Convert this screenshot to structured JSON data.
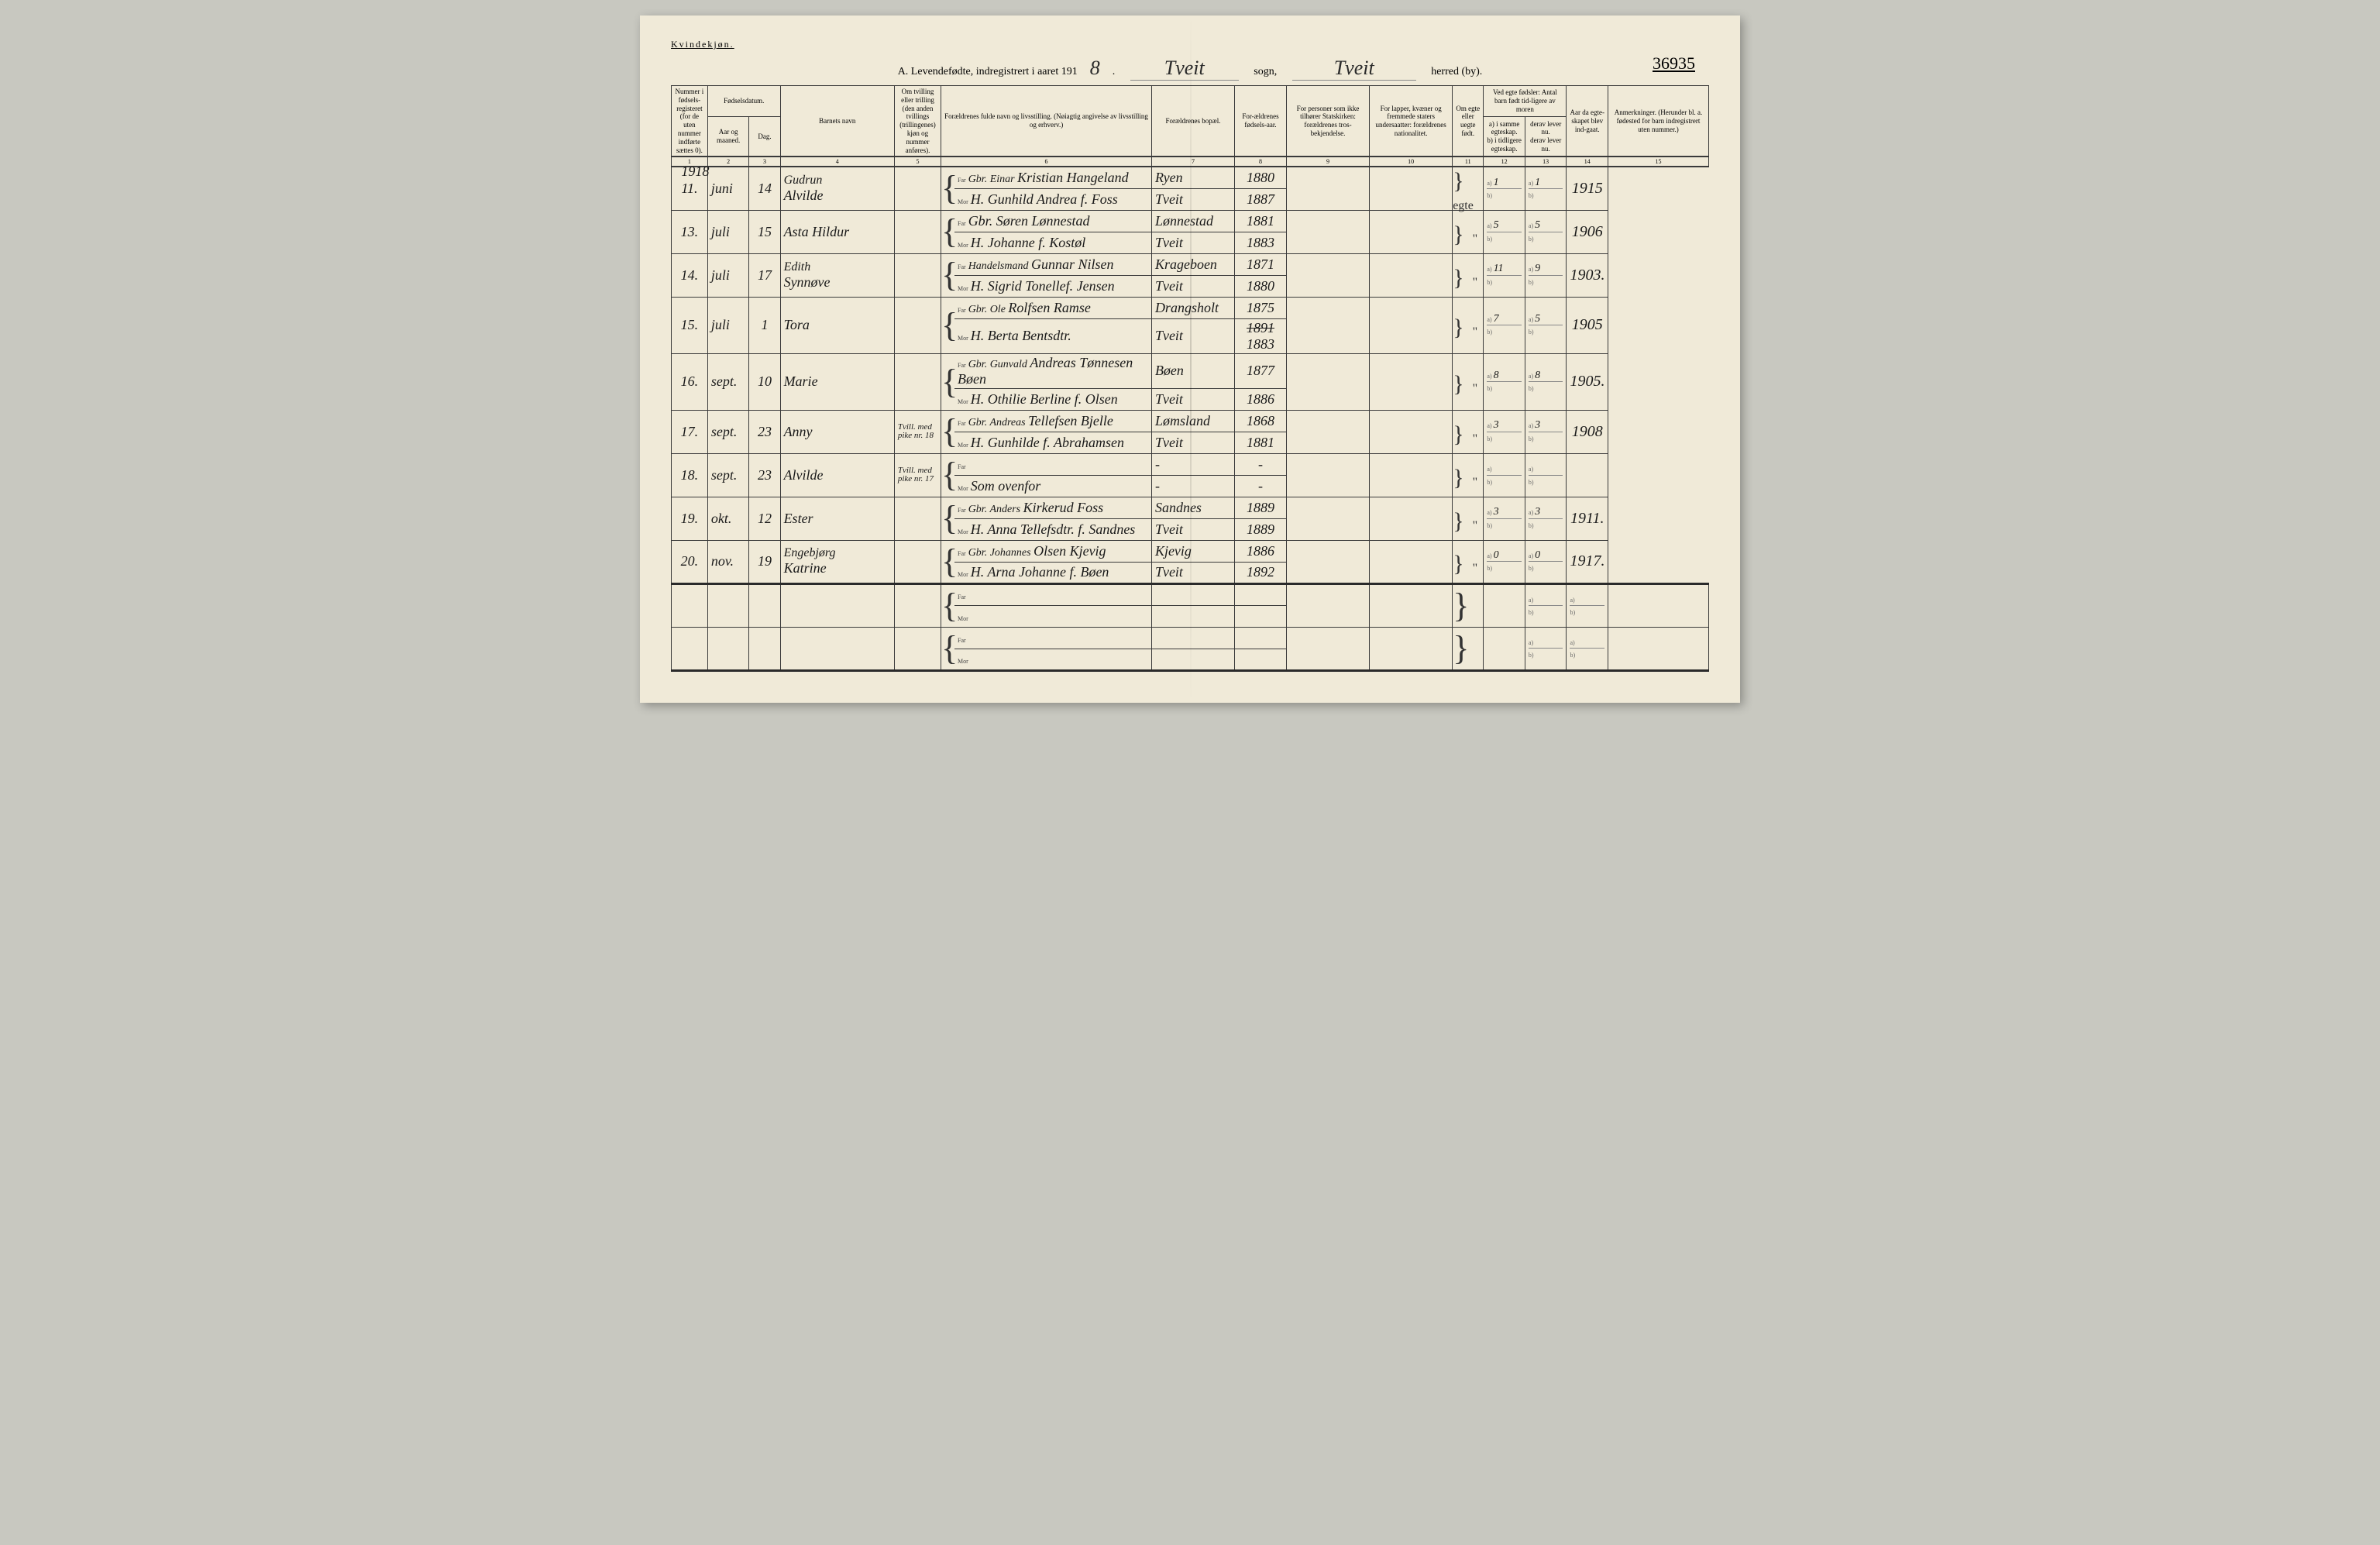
{
  "page": {
    "gender_label": "Kvindekjøn.",
    "heading_prefix": "A. Levendefødte, indregistrert i aaret 191",
    "year_suffix": "8",
    "sogn_word": "sogn,",
    "herred_word": "herred (by).",
    "sogn_value": "Tveit",
    "herred_value": "Tveit",
    "corner_number": "36935",
    "background": "#f0ead8",
    "ink": "#1a1a1a"
  },
  "columns": {
    "c1": "Nummer i fødsels-registeret (for de uten nummer indførte sættes 0).",
    "c2_top": "Fødselsdatum.",
    "c2a": "Aar og maaned.",
    "c2b": "Dag.",
    "c4": "Barnets navn",
    "c5": "Om tvilling eller trilling (den anden tvillings (trillingenes) kjøn og nummer anføres).",
    "c6": "Forældrenes fulde navn og livsstilling. (Nøiagtig angivelse av livsstilling og erhverv.)",
    "c7": "Forældrenes bopæl.",
    "c8": "For-ældrenes fødsels-aar.",
    "c9": "For personer som ikke tilhører Statskirken: forældrenes tros-bekjendelse.",
    "c10": "For lapper, kvæner og fremmede staters undersaatter: forældrenes nationalitet.",
    "c11": "Om egte eller uegte født.",
    "c12_top": "Ved egte fødsler: Antal barn født tid-ligere av moren",
    "c12a": "a) i samme egteskap.",
    "c12b": "b) i tidligere egteskap.",
    "c13a": "derav lever nu.",
    "c13b": "derav lever nu.",
    "c14": "Aar da egte-skapet blev ind-gaat.",
    "c15": "Anmerkninger. (Herunder bl. a. fødested for barn indregistrert uten nummer.)",
    "nums": [
      "1",
      "2",
      "3",
      "4",
      "5",
      "6",
      "7",
      "8",
      "9",
      "10",
      "11",
      "12",
      "13",
      "14",
      "15"
    ]
  },
  "year_written": "1918",
  "rows": [
    {
      "num": "11.",
      "month": "juni",
      "day": "14",
      "name_top": "Gudrun",
      "name": "Alvilde",
      "twin": "",
      "far_pre": "Gbr. Einar",
      "far": "Kristian Hangeland",
      "mor": "H. Gunhild Andrea f. Foss",
      "bopal_far": "Ryen",
      "bopal_mor": "Tveit",
      "aar_far": "1880",
      "aar_mor": "1887",
      "egte": "egte",
      "a12": "1",
      "a13": "1",
      "a14": "1915"
    },
    {
      "num": "13.",
      "month": "juli",
      "day": "15",
      "name_top": "",
      "name": "Asta Hildur",
      "twin": "",
      "far_pre": "",
      "far": "Gbr. Søren Lønnestad",
      "mor": "H. Johanne f. Kostøl",
      "bopal_far": "Lønnestad",
      "bopal_mor": "Tveit",
      "aar_far": "1881",
      "aar_mor": "1883",
      "egte": "\"",
      "a12": "5",
      "a13": "5",
      "a14": "1906"
    },
    {
      "num": "14.",
      "month": "juli",
      "day": "17",
      "name_top": "Edith",
      "name": "Synnøve",
      "twin": "",
      "far_pre": "Handelsmand",
      "far": "Gunnar Nilsen",
      "mor": "H. Sigrid Tonellef. Jensen",
      "bopal_far": "Krageboen",
      "bopal_mor": "Tveit",
      "aar_far": "1871",
      "aar_mor": "1880",
      "egte": "\"",
      "a12": "11",
      "a13": "9",
      "a14": "1903."
    },
    {
      "num": "15.",
      "month": "juli",
      "day": "1",
      "name_top": "",
      "name": "Tora",
      "twin": "",
      "far_pre": "Gbr. Ole",
      "far": "Rolfsen Ramse",
      "mor": "H. Berta Bentsdtr.",
      "bopal_far": "Drangsholt",
      "bopal_mor": "Tveit",
      "aar_far": "1875",
      "aar_mor_struck": "1891",
      "aar_mor_corr": "1883",
      "egte": "\"",
      "a12": "7",
      "a13": "5",
      "a14": "1905"
    },
    {
      "num": "16.",
      "month": "sept.",
      "day": "10",
      "name_top": "",
      "name": "Marie",
      "twin": "",
      "far_pre": "Gbr. Gunvald",
      "far": "Andreas Tønnesen Bøen",
      "mor": "H. Othilie Berline f. Olsen",
      "bopal_far": "Bøen",
      "bopal_mor": "Tveit",
      "aar_far": "1877",
      "aar_mor": "1886",
      "egte": "\"",
      "a12": "8",
      "a13": "8",
      "a14": "1905."
    },
    {
      "num": "17.",
      "month": "sept.",
      "day": "23",
      "name_top": "",
      "name": "Anny",
      "twin": "Tvill. med pike nr. 18",
      "far_pre": "Gbr. Andreas",
      "far": "Tellefsen Bjelle",
      "mor": "H. Gunhilde f. Abrahamsen",
      "bopal_far": "Lømsland",
      "bopal_mor": "Tveit",
      "aar_far": "1868",
      "aar_mor": "1881",
      "egte": "\"",
      "a12": "3",
      "a13": "3",
      "a14": "1908"
    },
    {
      "num": "18.",
      "month": "sept.",
      "day": "23",
      "name_top": "",
      "name": "Alvilde",
      "twin": "Tvill. med pike nr. 17",
      "far_pre": "",
      "far": "",
      "mor": "Som ovenfor",
      "bopal_far": "-",
      "bopal_mor": "-",
      "aar_far": "-",
      "aar_mor": "-",
      "egte": "\"",
      "a12": "",
      "a13": "",
      "a14": ""
    },
    {
      "num": "19.",
      "month": "okt.",
      "day": "12",
      "name_top": "",
      "name": "Ester",
      "twin": "",
      "far_pre": "Gbr. Anders",
      "far": "Kirkerud Foss",
      "mor": "H. Anna Tellefsdtr. f. Sandnes",
      "bopal_far": "Sandnes",
      "bopal_mor": "Tveit",
      "aar_far": "1889",
      "aar_mor": "1889",
      "egte": "\"",
      "a12": "3",
      "a13": "3",
      "a14": "1911."
    },
    {
      "num": "20.",
      "month": "nov.",
      "day": "19",
      "name_top": "Engebjørg",
      "name": "Katrine",
      "twin": "",
      "far_pre": "Gbr. Johannes",
      "far": "Olsen Kjevig",
      "mor": "H. Arna Johanne f. Bøen",
      "bopal_far": "Kjevig",
      "bopal_mor": "Tveit",
      "aar_far": "1886",
      "aar_mor": "1892",
      "egte": "\"",
      "a12": "0",
      "a13": "0",
      "a14": "1917."
    }
  ],
  "empty_rows": 2
}
